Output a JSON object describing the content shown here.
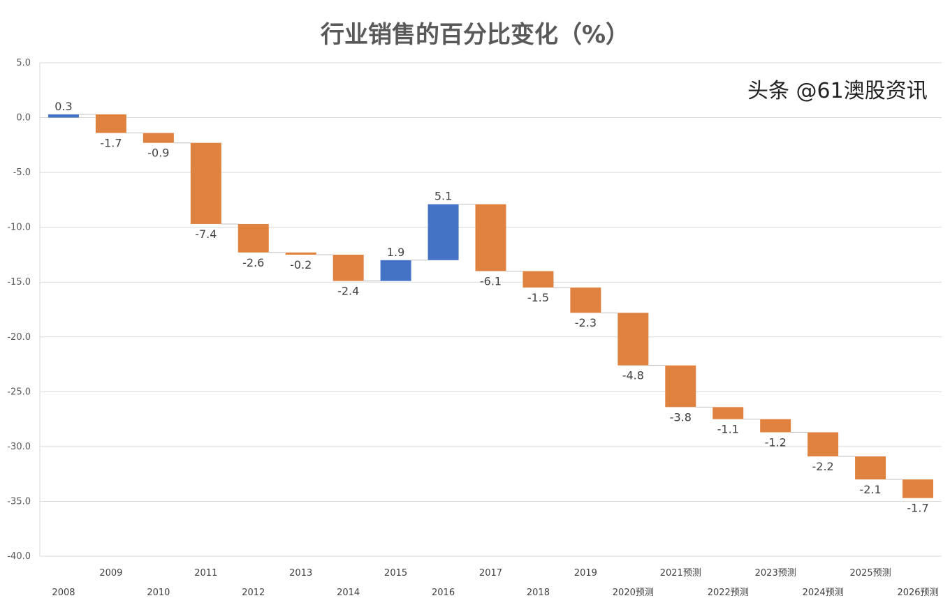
{
  "chart_data": {
    "type": "waterfall",
    "title": "行业销售的百分比变化（%）",
    "categories": [
      "2008",
      "2009",
      "2010",
      "2011",
      "2012",
      "2013",
      "2014",
      "2015",
      "2016",
      "2017",
      "2018",
      "2019",
      "2020预测",
      "2021预测",
      "2022预测",
      "2023预测",
      "2024预测",
      "2025预测",
      "2026预测"
    ],
    "values": [
      0.3,
      -1.7,
      -0.9,
      -7.4,
      -2.6,
      -0.2,
      -2.4,
      1.9,
      5.1,
      -6.1,
      -1.5,
      -2.3,
      -4.8,
      -3.8,
      -1.1,
      -1.2,
      -2.2,
      -2.1,
      -1.7
    ],
    "data_labels": [
      "0.3",
      "-1.7",
      "-0.9",
      "-7.4",
      "-2.6",
      "-0.2",
      "-2.4",
      "1.9",
      "5.1",
      "-6.1",
      "-1.5",
      "-2.3",
      "-4.8",
      "-3.8",
      "-1.1",
      "-1.2",
      "-2.2",
      "-2.1",
      "-1.7"
    ],
    "ylim": [
      -40,
      5
    ],
    "yticks": [
      "5.0",
      "0.0",
      "-5.0",
      "-10.0",
      "-15.0",
      "-20.0",
      "-25.0",
      "-30.0",
      "-35.0",
      "-40.0"
    ],
    "grid": true,
    "colors": {
      "increase": "#4472C4",
      "decrease": "#E0823F"
    }
  },
  "watermark": "头条 @61澳股资讯"
}
